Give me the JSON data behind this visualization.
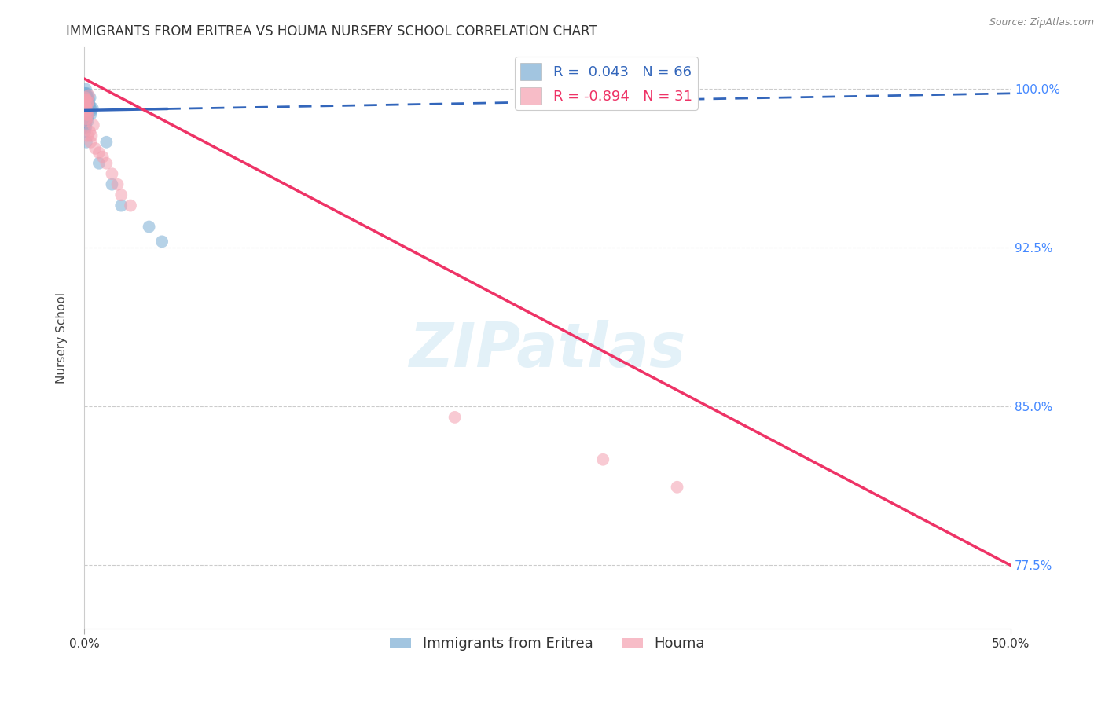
{
  "title": "IMMIGRANTS FROM ERITREA VS HOUMA NURSERY SCHOOL CORRELATION CHART",
  "source": "Source: ZipAtlas.com",
  "ylabel": "Nursery School",
  "y_ticks": [
    77.5,
    85.0,
    92.5,
    100.0
  ],
  "y_tick_labels": [
    "77.5%",
    "85.0%",
    "92.5%",
    "100.0%"
  ],
  "xlim": [
    0.0,
    50.0
  ],
  "ylim": [
    74.5,
    102.0
  ],
  "x_tick_positions": [
    0,
    50
  ],
  "x_tick_labels": [
    "0.0%",
    "50.0%"
  ],
  "legend_labels": [
    "Immigrants from Eritrea",
    "Houma"
  ],
  "R_blue": 0.043,
  "N_blue": 66,
  "R_pink": -0.894,
  "N_pink": 31,
  "blue_color": "#7BADD4",
  "pink_color": "#F4A0B0",
  "blue_scatter_x": [
    0.1,
    0.15,
    0.08,
    0.05,
    0.12,
    0.2,
    0.18,
    0.09,
    0.06,
    0.14,
    0.08,
    0.05,
    0.12,
    0.1,
    0.15,
    0.07,
    0.04,
    0.18,
    0.09,
    0.06,
    0.08,
    0.1,
    0.12,
    0.05,
    0.07,
    0.15,
    0.1,
    0.08,
    0.06,
    0.04,
    0.03,
    0.05,
    0.07,
    0.09,
    0.11,
    0.06,
    0.08,
    0.04,
    0.06,
    0.1,
    0.05,
    0.08,
    0.1,
    0.06,
    0.04,
    0.07,
    0.09,
    0.12,
    0.05,
    0.08,
    0.3,
    0.25,
    0.35,
    0.4,
    0.28,
    0.2,
    0.45,
    0.22,
    0.18,
    0.32,
    0.8,
    1.2,
    1.5,
    2.0,
    3.5,
    4.2
  ],
  "blue_scatter_y": [
    99.5,
    99.8,
    100.0,
    99.2,
    98.8,
    99.0,
    99.5,
    99.3,
    99.6,
    99.7,
    98.5,
    98.0,
    97.5,
    98.2,
    98.8,
    99.0,
    99.4,
    99.6,
    99.2,
    98.9,
    99.1,
    99.3,
    99.7,
    98.4,
    98.6,
    99.0,
    99.2,
    98.7,
    99.4,
    99.8,
    99.5,
    99.2,
    99.0,
    98.8,
    98.5,
    98.2,
    99.0,
    99.3,
    99.6,
    99.1,
    99.8,
    99.5,
    98.9,
    98.6,
    99.2,
    98.8,
    99.4,
    99.7,
    99.0,
    98.4,
    99.2,
    99.5,
    98.8,
    99.0,
    99.3,
    98.5,
    99.1,
    99.4,
    98.7,
    99.6,
    96.5,
    97.5,
    95.5,
    94.5,
    93.5,
    92.8
  ],
  "pink_scatter_x": [
    0.1,
    0.15,
    0.08,
    0.2,
    0.05,
    0.12,
    0.18,
    0.25,
    0.3,
    0.08,
    0.35,
    0.22,
    0.4,
    0.5,
    0.6,
    0.8,
    1.0,
    1.2,
    1.5,
    1.8,
    2.0,
    2.5,
    0.1,
    0.15,
    0.08,
    0.12,
    0.2,
    20.0,
    28.0,
    32.0,
    0.05
  ],
  "pink_scatter_y": [
    99.5,
    99.0,
    99.2,
    98.8,
    99.6,
    98.5,
    99.3,
    99.7,
    98.0,
    99.1,
    97.5,
    99.4,
    97.8,
    98.3,
    97.2,
    97.0,
    96.8,
    96.5,
    96.0,
    95.5,
    95.0,
    94.5,
    99.0,
    98.8,
    99.2,
    98.6,
    97.8,
    84.5,
    82.5,
    81.2,
    99.5
  ],
  "blue_line_x": [
    0.0,
    4.5,
    50.0
  ],
  "blue_line_y": [
    99.0,
    99.15,
    99.8
  ],
  "blue_solid_end": 4.5,
  "pink_line_x": [
    0.0,
    50.0
  ],
  "pink_line_y": [
    100.5,
    77.5
  ],
  "watermark_text": "ZIPatlas",
  "background_color": "#FFFFFF",
  "grid_color": "#CCCCCC",
  "title_fontsize": 12,
  "axis_label_fontsize": 11,
  "tick_fontsize": 11,
  "legend_fontsize": 13
}
